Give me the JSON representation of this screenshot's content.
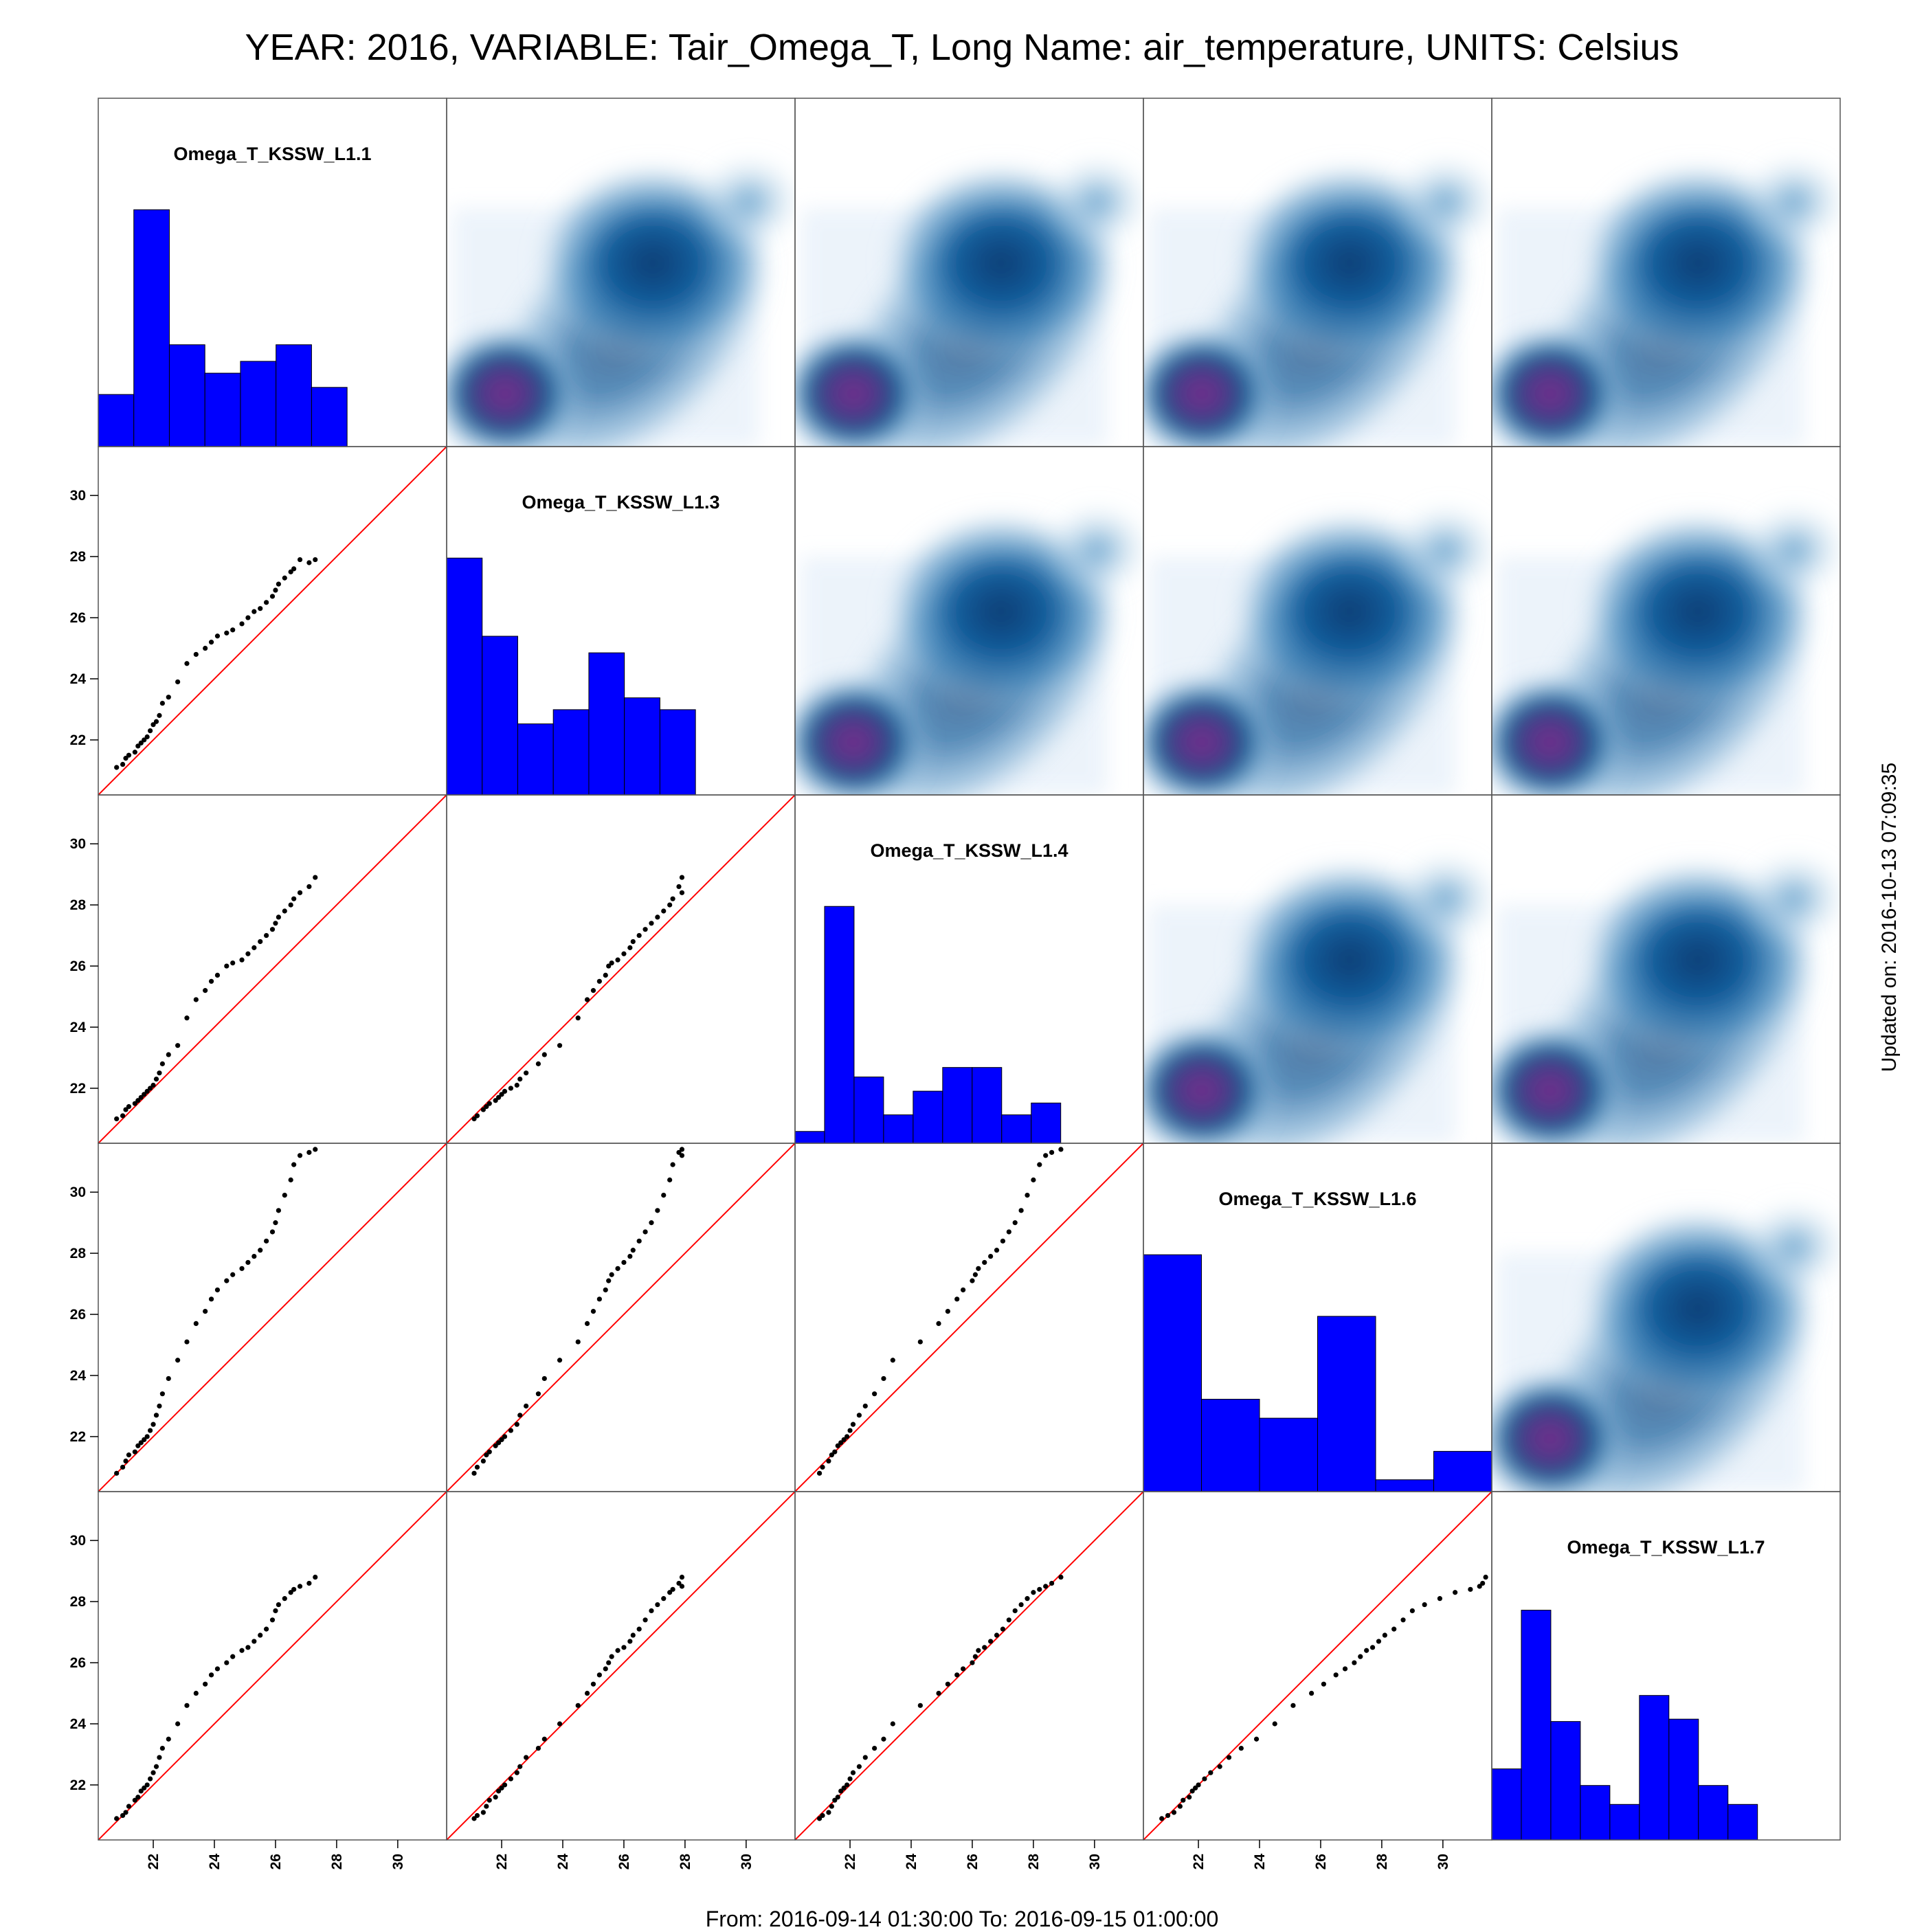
{
  "title": "YEAR: 2016, VARIABLE: Tair_Omega_T, Long Name: air_temperature, UNITS: Celsius",
  "footer": "From: 2016-09-14 01:30:00 To: 2016-09-15 01:00:00",
  "updated": "Updated on: 2016-10-13 07:09:35",
  "chart_data": {
    "type": "scatter-matrix",
    "variables": [
      "Omega_T_KSSW_L1.1",
      "Omega_T_KSSW_L1.3",
      "Omega_T_KSSW_L1.4",
      "Omega_T_KSSW_L1.6",
      "Omega_T_KSSW_L1.7"
    ],
    "axis_range": [
      20.2,
      31.6
    ],
    "ticks": [
      22,
      24,
      26,
      28,
      30
    ],
    "tick_labels": [
      "22",
      "24",
      "26",
      "28",
      "30"
    ],
    "diagonal": "histogram",
    "upper": "2d-density",
    "lower": "scatter with 1:1 line",
    "colors": {
      "histogram": "#0000ff",
      "reference_line": "#ff0000",
      "points": "#000000",
      "density_high": "#7a2c8c",
      "density_mid": "#0b3c73"
    },
    "series": [
      [
        20.8,
        21.0,
        21.1,
        21.2,
        21.4,
        21.5,
        21.6,
        21.7,
        21.8,
        21.9,
        22.0,
        22.1,
        22.2,
        22.3,
        22.5,
        22.8,
        23.1,
        23.4,
        23.7,
        23.9,
        24.1,
        24.4,
        24.6,
        24.9,
        25.1,
        25.3,
        25.5,
        25.7,
        25.9,
        26.0,
        26.1,
        26.3,
        26.5,
        26.6,
        26.8,
        27.1,
        27.3
      ],
      [
        21.1,
        21.2,
        21.4,
        21.5,
        21.6,
        21.8,
        21.9,
        22.0,
        22.1,
        22.3,
        22.5,
        22.6,
        22.8,
        23.2,
        23.4,
        23.9,
        24.5,
        24.8,
        25.0,
        25.2,
        25.4,
        25.5,
        25.6,
        25.8,
        26.0,
        26.2,
        26.3,
        26.5,
        26.7,
        26.9,
        27.1,
        27.3,
        27.5,
        27.6,
        27.9,
        27.8,
        27.9
      ],
      [
        21.0,
        21.1,
        21.3,
        21.4,
        21.5,
        21.6,
        21.7,
        21.8,
        21.9,
        22.0,
        22.1,
        22.3,
        22.5,
        22.8,
        23.1,
        23.4,
        24.3,
        24.9,
        25.2,
        25.5,
        25.7,
        26.0,
        26.1,
        26.2,
        26.4,
        26.6,
        26.8,
        27.0,
        27.2,
        27.4,
        27.6,
        27.8,
        28.0,
        28.2,
        28.4,
        28.6,
        28.9
      ],
      [
        20.8,
        21.0,
        21.2,
        21.4,
        21.5,
        21.7,
        21.8,
        21.9,
        22.0,
        22.2,
        22.4,
        22.7,
        23.0,
        23.4,
        23.9,
        24.5,
        25.1,
        25.7,
        26.1,
        26.5,
        26.8,
        27.1,
        27.3,
        27.5,
        27.7,
        27.9,
        28.1,
        28.4,
        28.7,
        29.0,
        29.4,
        29.9,
        30.4,
        30.9,
        31.2,
        31.3,
        31.4
      ],
      [
        20.9,
        21.0,
        21.1,
        21.3,
        21.5,
        21.6,
        21.8,
        21.9,
        22.0,
        22.2,
        22.4,
        22.6,
        22.9,
        23.2,
        23.5,
        24.0,
        24.6,
        25.0,
        25.3,
        25.6,
        25.8,
        26.0,
        26.2,
        26.4,
        26.5,
        26.7,
        26.9,
        27.1,
        27.4,
        27.7,
        27.9,
        28.1,
        28.3,
        28.4,
        28.5,
        28.6,
        28.8
      ]
    ],
    "histograms": [
      [
        0.22,
        1.0,
        0.43,
        0.31,
        0.36,
        0.43,
        0.25
      ],
      [
        1.0,
        0.67,
        0.3,
        0.36,
        0.6,
        0.41,
        0.36
      ],
      [
        0.05,
        1.0,
        0.28,
        0.12,
        0.22,
        0.32,
        0.32,
        0.12,
        0.17
      ],
      [
        1.0,
        0.39,
        0.31,
        0.74,
        0.05,
        0.17
      ],
      [
        0.3,
        0.97,
        0.5,
        0.23,
        0.15,
        0.61,
        0.51,
        0.23,
        0.15
      ]
    ]
  }
}
